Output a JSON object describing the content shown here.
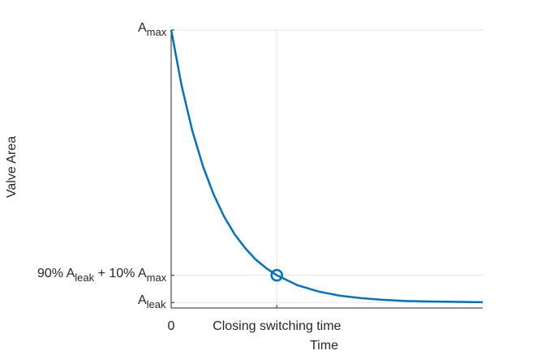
{
  "chart_data": {
    "type": "line",
    "title": "",
    "xlabel": "Time",
    "ylabel": "Valve Area",
    "grid": true,
    "x_ticks": [
      {
        "value": 0,
        "label": "0"
      },
      {
        "value": 1,
        "label": "Closing switching time"
      }
    ],
    "y_ticks": [
      {
        "value": 0,
        "main": "A",
        "sub": "leak",
        "suffix": ""
      },
      {
        "value": 0.1,
        "main": "90% A",
        "sub": "leak",
        "suffix": " + 10% A",
        "sub2": "max"
      },
      {
        "value": 1,
        "main": "A",
        "sub": "max",
        "suffix": ""
      }
    ],
    "xlim": [
      0,
      2.95
    ],
    "ylim": [
      -0.02,
      1
    ],
    "series": [
      {
        "color": "#0072BD",
        "x": [
          0,
          0.1,
          0.2,
          0.3,
          0.4,
          0.5,
          0.6,
          0.7,
          0.8,
          0.9,
          1.0,
          1.2,
          1.4,
          1.6,
          1.8,
          2.0,
          2.2,
          2.4,
          2.6,
          2.8,
          2.95
        ],
        "y": [
          1.0,
          0.794,
          0.631,
          0.501,
          0.398,
          0.316,
          0.251,
          0.2,
          0.158,
          0.126,
          0.1,
          0.063,
          0.04,
          0.025,
          0.016,
          0.01,
          0.006,
          0.004,
          0.003,
          0.002,
          0.001
        ]
      }
    ],
    "marker": {
      "x": 1,
      "y": 0.1,
      "shape": "circle",
      "color": "#0072BD"
    }
  }
}
